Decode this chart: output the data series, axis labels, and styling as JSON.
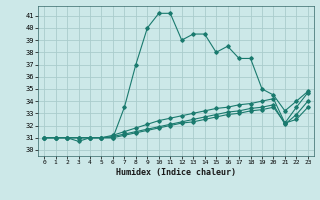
{
  "title": "",
  "xlabel": "Humidex (Indice chaleur)",
  "ylabel": "",
  "xlim": [
    -0.5,
    23.5
  ],
  "ylim": [
    29.5,
    41.8
  ],
  "xticks": [
    0,
    1,
    2,
    3,
    4,
    5,
    6,
    7,
    8,
    9,
    10,
    11,
    12,
    13,
    14,
    15,
    16,
    17,
    18,
    19,
    20,
    21,
    22,
    23
  ],
  "yticks": [
    30,
    31,
    32,
    33,
    34,
    35,
    36,
    37,
    38,
    39,
    40,
    41
  ],
  "bg_color": "#cce8e8",
  "line_color": "#1a7a6e",
  "grid_color": "#aacccc",
  "lines": [
    {
      "x": [
        0,
        1,
        2,
        3,
        4,
        5,
        6,
        7,
        8,
        9,
        10,
        11,
        12,
        13,
        14,
        15,
        16,
        17,
        18,
        19,
        20,
        21,
        22,
        23
      ],
      "y": [
        31,
        31,
        31,
        30.7,
        31,
        31,
        31,
        33.5,
        37,
        40,
        41.2,
        41.2,
        39,
        39.5,
        39.5,
        38,
        38.5,
        37.5,
        37.5,
        35,
        34.5,
        33.2,
        34.0,
        34.8
      ]
    },
    {
      "x": [
        0,
        1,
        2,
        3,
        4,
        5,
        6,
        7,
        8,
        9,
        10,
        11,
        12,
        13,
        14,
        15,
        16,
        17,
        18,
        19,
        20,
        21,
        22,
        23
      ],
      "y": [
        31,
        31,
        31,
        31,
        31,
        31,
        31.2,
        31.5,
        31.8,
        32.1,
        32.4,
        32.6,
        32.8,
        33.0,
        33.2,
        33.4,
        33.5,
        33.7,
        33.8,
        34.0,
        34.2,
        32.2,
        33.5,
        34.7
      ]
    },
    {
      "x": [
        0,
        1,
        2,
        3,
        4,
        5,
        6,
        7,
        8,
        9,
        10,
        11,
        12,
        13,
        14,
        15,
        16,
        17,
        18,
        19,
        20,
        21,
        22,
        23
      ],
      "y": [
        31,
        31,
        31,
        31,
        31,
        31,
        31.1,
        31.3,
        31.5,
        31.7,
        31.9,
        32.1,
        32.3,
        32.5,
        32.7,
        32.9,
        33.1,
        33.2,
        33.4,
        33.5,
        33.7,
        32.1,
        32.9,
        34.0
      ]
    },
    {
      "x": [
        0,
        1,
        2,
        3,
        4,
        5,
        6,
        7,
        8,
        9,
        10,
        11,
        12,
        13,
        14,
        15,
        16,
        17,
        18,
        19,
        20,
        21,
        22,
        23
      ],
      "y": [
        31,
        31,
        31,
        31,
        31,
        31,
        31.0,
        31.2,
        31.4,
        31.6,
        31.8,
        32.0,
        32.2,
        32.3,
        32.5,
        32.7,
        32.9,
        33.0,
        33.2,
        33.3,
        33.5,
        32.2,
        32.5,
        33.5
      ]
    }
  ]
}
